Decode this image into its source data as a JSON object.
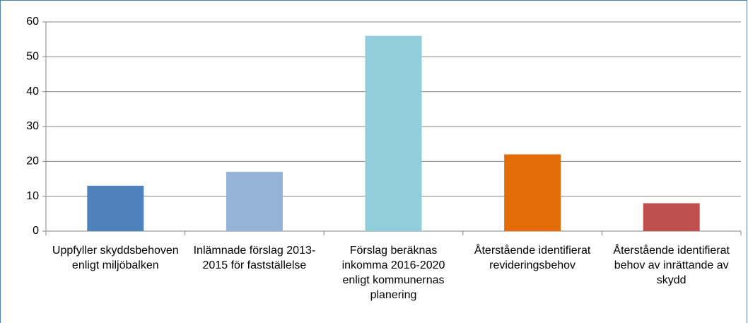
{
  "chart_data": {
    "type": "bar",
    "categories": [
      "Uppfyller skyddsbehoven enligt miljöbalken",
      "Inlämnade förslag 2013-2015 för fastställelse",
      "Förslag beräknas inkomma 2016-2020 enligt kommunernas planering",
      "Återstående identifierat revideringsbehov",
      "Återstående identifierat behov av inrättande av skydd"
    ],
    "values": [
      13,
      17,
      56,
      22,
      8
    ],
    "colors": [
      "#4f81bd",
      "#95b3d7",
      "#92cddc",
      "#e36c09",
      "#c0504d"
    ],
    "ylim": [
      0,
      60
    ],
    "yticks": [
      0,
      10,
      20,
      30,
      40,
      50,
      60
    ],
    "grid": true
  }
}
